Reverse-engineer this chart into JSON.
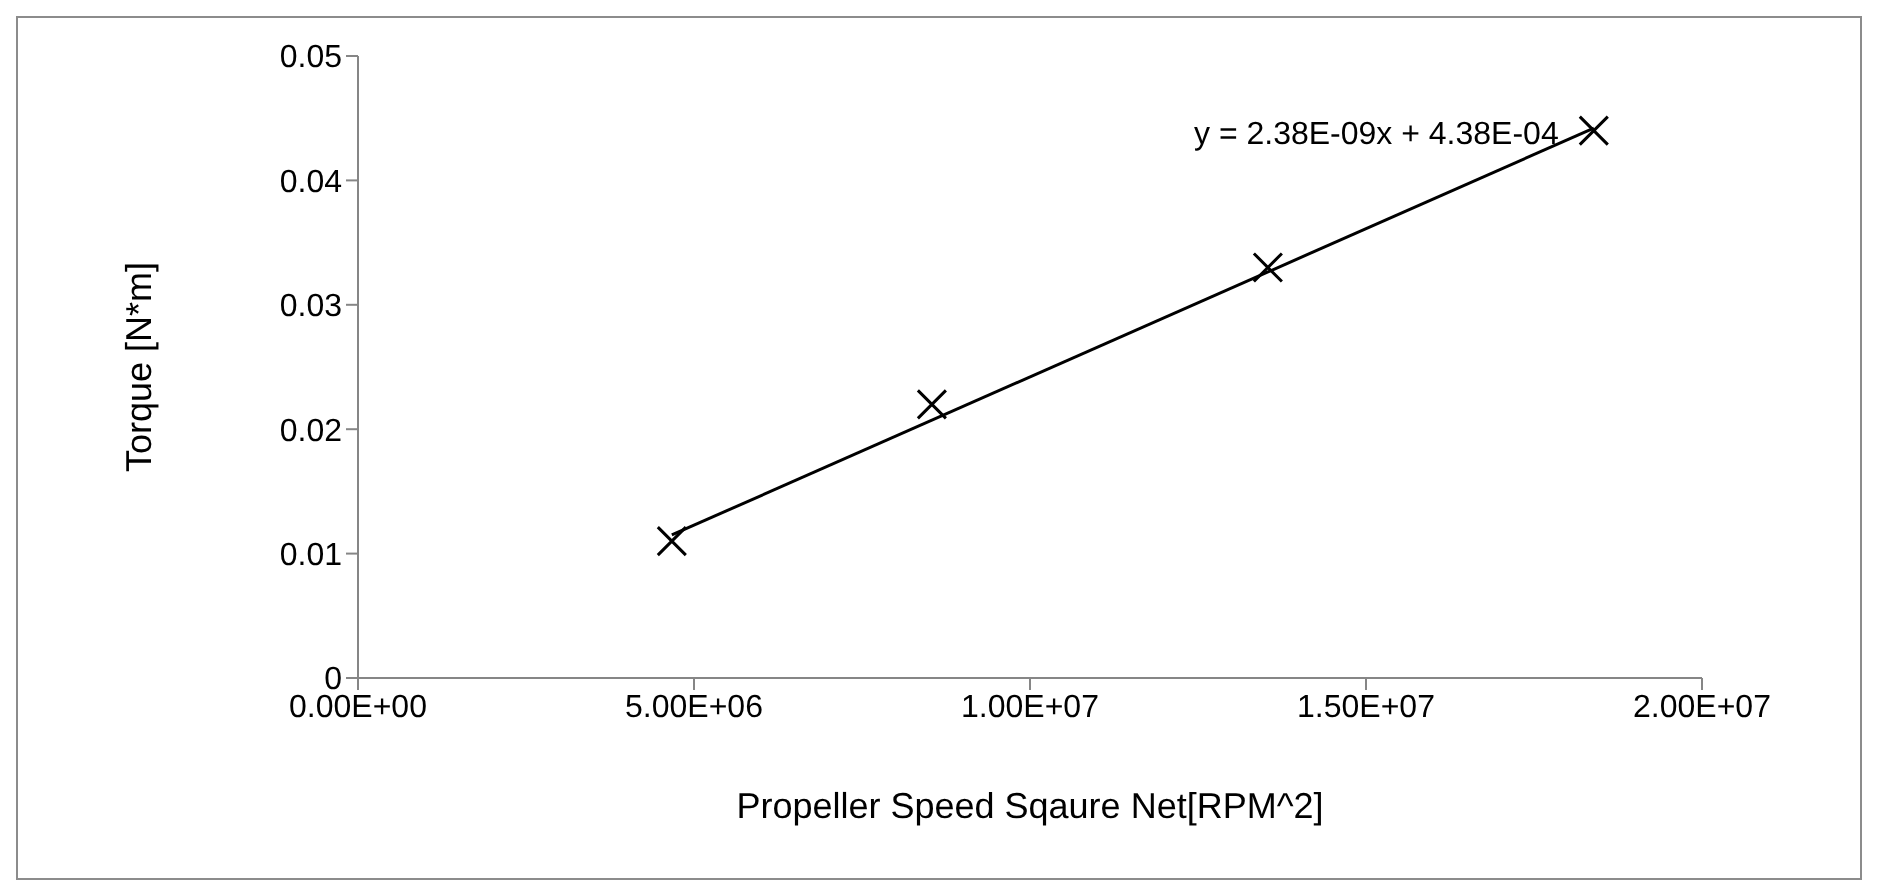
{
  "chart_data": {
    "type": "scatter",
    "xlabel": "Propeller Speed Sqaure Net[RPM^2]",
    "ylabel": "Torque [N*m]",
    "x": [
      4670000,
      8540000,
      13540000,
      18390000
    ],
    "series": [
      {
        "type": "scatter",
        "color": "#000000",
        "marker": "cross",
        "values": [
          0.011,
          0.022,
          0.033,
          0.044
        ]
      },
      {
        "type": "line",
        "color": "#000000",
        "marker": "none",
        "x": [
          4670000,
          18390000
        ],
        "values": [
          0.0115,
          0.0442
        ]
      }
    ],
    "annotations": [
      "y = 2.38E-09x + 4.38E-04"
    ],
    "xlim": [
      0,
      20000000
    ],
    "ylim": [
      0,
      0.05
    ],
    "xticks": [
      {
        "value": 0,
        "label": "0.00E+00"
      },
      {
        "value": 5000000,
        "label": "5.00E+06"
      },
      {
        "value": 10000000,
        "label": "1.00E+07"
      },
      {
        "value": 15000000,
        "label": "1.50E+07"
      },
      {
        "value": 20000000,
        "label": "2.00E+07"
      }
    ],
    "yticks": [
      0,
      0.01,
      0.02,
      0.03,
      0.04,
      0.05
    ],
    "grid": false,
    "legend": false
  }
}
